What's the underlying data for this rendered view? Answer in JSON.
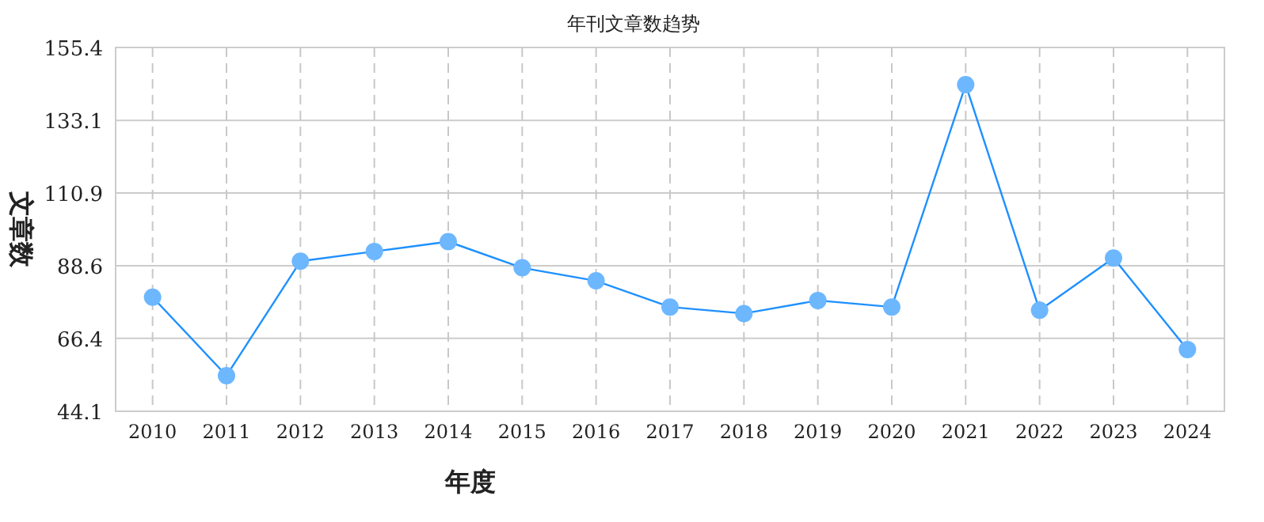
{
  "chart_data": {
    "type": "line",
    "title": "年刊文章数趋势",
    "xlabel": "年度",
    "ylabel": "文章数",
    "categories": [
      "2010",
      "2011",
      "2012",
      "2013",
      "2014",
      "2015",
      "2016",
      "2017",
      "2018",
      "2019",
      "2020",
      "2021",
      "2022",
      "2023",
      "2024"
    ],
    "series": [
      {
        "color": "#1e90ff",
        "values": [
          79,
          55,
          90,
          93,
          96,
          88,
          84,
          76,
          74,
          78,
          76,
          144,
          75,
          91,
          63
        ]
      }
    ],
    "ylim": [
      44.1,
      155.4
    ],
    "yticks": [
      44.1,
      66.4,
      88.6,
      110.9,
      133.1,
      155.4
    ],
    "grid": true,
    "marker": "circle",
    "line_style": "solid"
  }
}
